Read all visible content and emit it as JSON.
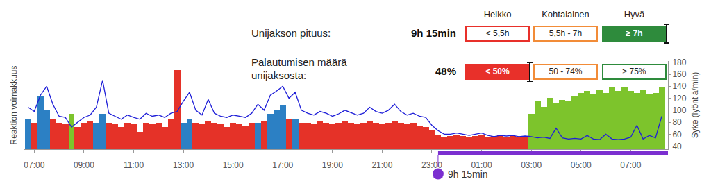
{
  "chart_data": {
    "type": "bar",
    "ylabel": "Reaktion voimakkuus",
    "y2label": "Syke (lyöntiä/min)",
    "x": [
      6.75,
      7,
      7.25,
      7.5,
      7.75,
      8,
      8.25,
      8.5,
      8.75,
      9,
      9.25,
      9.5,
      9.75,
      10,
      10.25,
      10.5,
      10.75,
      11,
      11.25,
      11.5,
      11.75,
      12,
      12.25,
      12.5,
      12.75,
      13,
      13.25,
      13.5,
      13.75,
      14,
      14.25,
      14.5,
      14.75,
      15,
      15.25,
      15.5,
      15.75,
      16,
      16.25,
      16.5,
      16.75,
      17,
      17.25,
      17.5,
      17.75,
      18,
      18.25,
      18.5,
      18.75,
      19,
      19.25,
      19.5,
      19.75,
      20,
      20.25,
      20.5,
      20.75,
      21,
      21.25,
      21.5,
      21.75,
      22,
      22.25,
      22.5,
      22.75,
      23,
      23.25,
      23.5,
      23.75,
      24,
      24.25,
      24.5,
      24.75,
      25,
      25.25,
      25.5,
      25.75,
      26,
      26.25,
      26.5,
      26.75,
      27,
      27.25,
      27.5,
      27.75,
      28,
      28.25,
      28.5,
      28.75,
      29,
      29.25,
      29.5,
      29.75,
      30,
      30.25,
      30.5,
      30.75,
      31,
      31.25,
      31.5,
      31.75,
      32,
      32.25
    ],
    "xlim": [
      6.6,
      32.5
    ],
    "xticks": [
      {
        "value": 7,
        "label": "07:00"
      },
      {
        "value": 9,
        "label": "09:00"
      },
      {
        "value": 11,
        "label": "11:00"
      },
      {
        "value": 13,
        "label": "13:00"
      },
      {
        "value": 15,
        "label": "15:00"
      },
      {
        "value": 17,
        "label": "17:00"
      },
      {
        "value": 19,
        "label": "19:00"
      },
      {
        "value": 21,
        "label": "21:00"
      },
      {
        "value": 23,
        "label": "23:00"
      },
      {
        "value": 25,
        "label": "01:00"
      },
      {
        "value": 27,
        "label": "03:00"
      },
      {
        "value": 29,
        "label": "05:00"
      },
      {
        "value": 31,
        "label": "07:00"
      }
    ],
    "ylim": [
      0,
      100
    ],
    "y2lim": [
      35,
      182
    ],
    "y2ticks": [
      40,
      60,
      80,
      100,
      120,
      140,
      160,
      180
    ],
    "grid": false,
    "series": [
      {
        "type": "bar",
        "axis": "y",
        "values": [
          35,
          30,
          60,
          45,
          35,
          30,
          28,
          40,
          25,
          30,
          32,
          30,
          40,
          30,
          28,
          25,
          30,
          28,
          20,
          30,
          28,
          30,
          25,
          35,
          90,
          30,
          35,
          30,
          28,
          32,
          30,
          28,
          25,
          30,
          28,
          26,
          30,
          30,
          32,
          40,
          45,
          50,
          35,
          35,
          30,
          30,
          28,
          32,
          30,
          28,
          30,
          32,
          30,
          28,
          30,
          32,
          30,
          28,
          30,
          32,
          30,
          28,
          30,
          26,
          25,
          22,
          16,
          14,
          15,
          16,
          15,
          14,
          15,
          16,
          14,
          15,
          16,
          14,
          15,
          14,
          15,
          40,
          55,
          48,
          58,
          52,
          56,
          54,
          60,
          64,
          66,
          62,
          68,
          64,
          70,
          66,
          70,
          66,
          64,
          68,
          62,
          64,
          70
        ],
        "colors": [
          "#2c80c4",
          "#e53228",
          "#2c80c4",
          "#2c80c4",
          "#e53228",
          "#e53228",
          "#e53228",
          "#7dc42c",
          "#e53228",
          "#e53228",
          "#e53228",
          "#2c80c4",
          "#2c80c4",
          "#e53228",
          "#e53228",
          "#e53228",
          "#e53228",
          "#e53228",
          "#e53228",
          "#e53228",
          "#e53228",
          "#e53228",
          "#e53228",
          "#e53228",
          "#e53228",
          "#2c80c4",
          "#2c80c4",
          "#e53228",
          "#e53228",
          "#e53228",
          "#e53228",
          "#e53228",
          "#e53228",
          "#e53228",
          "#e53228",
          "#e53228",
          "#e53228",
          "#2c80c4",
          "#e53228",
          "#2c80c4",
          "#2c80c4",
          "#2c80c4",
          "#e53228",
          "#2c80c4",
          "#e53228",
          "#e53228",
          "#e53228",
          "#e53228",
          "#e53228",
          "#e53228",
          "#e53228",
          "#e53228",
          "#e53228",
          "#e53228",
          "#e53228",
          "#e53228",
          "#e53228",
          "#e53228",
          "#e53228",
          "#e53228",
          "#e53228",
          "#e53228",
          "#e53228",
          "#e53228",
          "#e53228",
          "#e53228",
          "#e53228",
          "#e53228",
          "#e53228",
          "#e53228",
          "#e53228",
          "#e53228",
          "#e53228",
          "#e53228",
          "#e53228",
          "#e53228",
          "#e53228",
          "#e53228",
          "#e53228",
          "#e53228",
          "#e53228",
          "#7dc42c",
          "#7dc42c",
          "#7dc42c",
          "#7dc42c",
          "#7dc42c",
          "#7dc42c",
          "#7dc42c",
          "#7dc42c",
          "#7dc42c",
          "#7dc42c",
          "#7dc42c",
          "#7dc42c",
          "#7dc42c",
          "#7dc42c",
          "#7dc42c",
          "#7dc42c",
          "#7dc42c",
          "#7dc42c",
          "#7dc42c",
          "#7dc42c",
          "#7dc42c",
          "#7dc42c"
        ]
      },
      {
        "type": "line",
        "axis": "y2",
        "color": "#1f1fd8",
        "values": [
          105,
          98,
          125,
          140,
          110,
          90,
          88,
          72,
          80,
          88,
          92,
          105,
          150,
          95,
          90,
          85,
          92,
          88,
          85,
          95,
          90,
          92,
          88,
          95,
          98,
          115,
          130,
          100,
          92,
          118,
          95,
          90,
          88,
          92,
          90,
          88,
          95,
          110,
          100,
          125,
          132,
          140,
          120,
          130,
          100,
          95,
          92,
          98,
          95,
          90,
          94,
          100,
          96,
          92,
          95,
          105,
          98,
          95,
          100,
          110,
          98,
          92,
          95,
          90,
          88,
          75,
          66,
          60,
          60,
          62,
          60,
          58,
          60,
          62,
          58,
          56,
          58,
          57,
          58,
          56,
          57,
          56,
          54,
          55,
          53,
          70,
          54,
          52,
          53,
          52,
          58,
          52,
          51,
          60,
          52,
          51,
          52,
          55,
          75,
          52,
          58,
          54,
          90
        ]
      }
    ],
    "sleep_period": {
      "start": 23.25,
      "end": 32.5,
      "label": "9h 15min",
      "color": "#7b2fd0"
    },
    "rating_table": {
      "levels": [
        "Heikko",
        "Kohtalainen",
        "Hyvä"
      ],
      "colors": [
        "#e8302a",
        "#f28c38",
        "#2e8b3c"
      ],
      "rows": [
        {
          "label": [
            "Unijakson pituus:"
          ],
          "value": "9h 15min",
          "ranges": [
            "< 5,5h",
            "5,5h - 7h",
            "≥ 7h"
          ],
          "rating": "Hyvä"
        },
        {
          "label": [
            "Palautumisen määrä",
            "unijaksosta:"
          ],
          "value": "48%",
          "ranges": [
            "< 50%",
            "50 - 74%",
            "≥ 75%"
          ],
          "rating": "Heikko"
        }
      ]
    }
  }
}
